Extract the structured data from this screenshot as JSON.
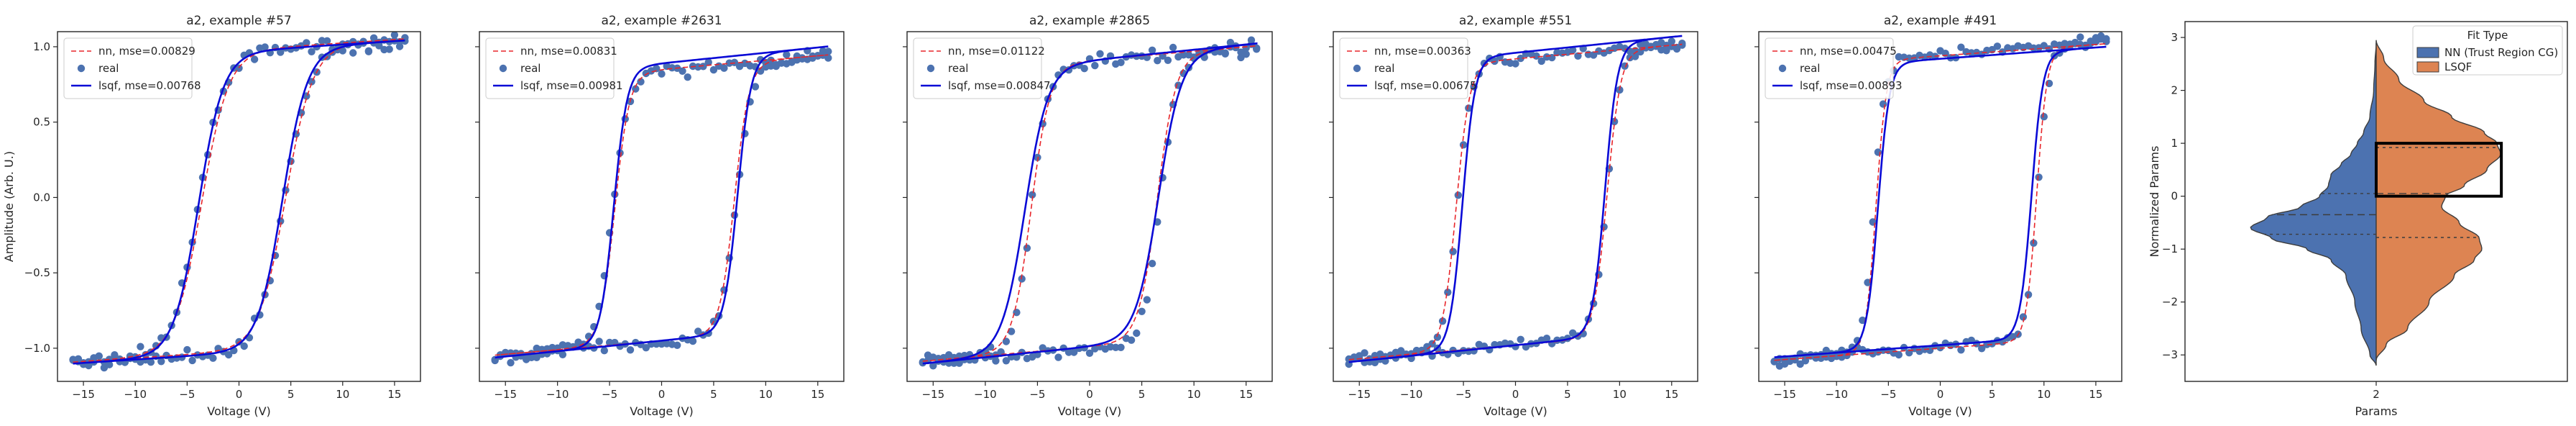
{
  "chart_data": [
    {
      "type": "scatter+line",
      "title": "a2, example #57",
      "xlabel": "Voltage (V)",
      "ylabel": "Amplitude (Arb. U.)",
      "xlim": [
        -17.5,
        17.5
      ],
      "ylim": [
        -1.22,
        1.1
      ],
      "xticks": [
        -15,
        -10,
        -5,
        0,
        5,
        10,
        15
      ],
      "yticks": [
        -1.0,
        -0.5,
        0.0,
        0.5,
        1.0
      ],
      "ytick_labels_visible": true,
      "legend": {
        "location": "upper-left",
        "entries": [
          "nn, mse=0.00829",
          "real",
          "lsqf, mse=0.00768"
        ]
      },
      "series": [
        {
          "name": "nn, mse=0.00829",
          "style": "dashed",
          "color": "#e8262b",
          "v0_up": 4.5,
          "v0_down": -3.6,
          "width": 2.6,
          "amp": 1.0,
          "offset": -0.02,
          "tilt": 0.0045
        },
        {
          "name": "real",
          "style": "scatter",
          "color": "#4c72b0",
          "v0_up": 4.4,
          "v0_down": -3.9,
          "width": 2.5,
          "amp": 1.0,
          "offset": -0.03,
          "tilt": 0.004,
          "noise": 0.045,
          "n": 130
        },
        {
          "name": "lsqf, mse=0.00768",
          "style": "solid",
          "color": "#0a0ad6",
          "v0_up": 4.2,
          "v0_down": -3.9,
          "width": 2.4,
          "amp": 1.0,
          "offset": -0.03,
          "tilt": 0.0045
        }
      ]
    },
    {
      "type": "scatter+line",
      "title": "a2, example #2631",
      "xlabel": "Voltage (V)",
      "ylabel": "",
      "xlim": [
        -17.5,
        17.5
      ],
      "ylim": [
        -1.22,
        1.1
      ],
      "xticks": [
        -15,
        -10,
        -5,
        0,
        5,
        10,
        15
      ],
      "yticks": [
        -1.0,
        -0.5,
        0.0,
        0.5,
        1.0
      ],
      "ytick_labels_visible": false,
      "legend": {
        "location": "upper-left",
        "entries": [
          "nn, mse=0.00831",
          "real",
          "lsqf, mse=0.00981"
        ]
      },
      "series": [
        {
          "name": "nn, mse=0.00831",
          "style": "dashed",
          "color": "#e8262b",
          "v0_up": 7.0,
          "v0_down": -4.5,
          "width": 1.4,
          "amp": 0.9,
          "offset": -0.05,
          "tilt": 0.006
        },
        {
          "name": "real",
          "style": "scatter",
          "color": "#4c72b0",
          "v0_up": 7.2,
          "v0_down": -4.7,
          "width": 1.5,
          "amp": 0.9,
          "offset": -0.06,
          "tilt": 0.006,
          "noise": 0.04,
          "n": 130
        },
        {
          "name": "lsqf, mse=0.00981",
          "style": "solid",
          "color": "#0a0ad6",
          "v0_up": 7.3,
          "v0_down": -4.6,
          "width": 1.3,
          "amp": 0.92,
          "offset": -0.03,
          "tilt": 0.007
        }
      ]
    },
    {
      "type": "scatter+line",
      "title": "a2, example #2865",
      "xlabel": "Voltage (V)",
      "ylabel": "",
      "xlim": [
        -17.5,
        17.5
      ],
      "ylim": [
        -1.22,
        1.1
      ],
      "xticks": [
        -15,
        -10,
        -5,
        0,
        5,
        10,
        15
      ],
      "yticks": [
        -1.0,
        -0.5,
        0.0,
        0.5,
        1.0
      ],
      "ytick_labels_visible": false,
      "legend": {
        "location": "upper-left",
        "entries": [
          "nn, mse=0.01122",
          "real",
          "lsqf, mse=0.00847"
        ]
      },
      "series": [
        {
          "name": "nn, mse=0.01122",
          "style": "dashed",
          "color": "#e8262b",
          "v0_up": 6.5,
          "v0_down": -5.6,
          "width": 1.8,
          "amp": 0.95,
          "offset": -0.04,
          "tilt": 0.006
        },
        {
          "name": "real",
          "style": "scatter",
          "color": "#4c72b0",
          "v0_up": 6.8,
          "v0_down": -5.6,
          "width": 1.6,
          "amp": 0.95,
          "offset": -0.05,
          "tilt": 0.006,
          "noise": 0.04,
          "n": 130
        },
        {
          "name": "lsqf, mse=0.00847",
          "style": "solid",
          "color": "#0a0ad6",
          "v0_up": 6.6,
          "v0_down": -6.2,
          "width": 2.2,
          "amp": 0.95,
          "offset": -0.04,
          "tilt": 0.007
        }
      ]
    },
    {
      "type": "scatter+line",
      "title": "a2, example #551",
      "xlabel": "Voltage (V)",
      "ylabel": "",
      "xlim": [
        -17.5,
        17.5
      ],
      "ylim": [
        -1.22,
        1.1
      ],
      "xticks": [
        -15,
        -10,
        -5,
        0,
        5,
        10,
        15
      ],
      "yticks": [
        -1.0,
        -0.5,
        0.0,
        0.5,
        1.0
      ],
      "ytick_labels_visible": false,
      "legend": {
        "location": "upper-left",
        "entries": [
          "nn, mse=0.00363",
          "real",
          "lsqf, mse=0.00675"
        ]
      },
      "series": [
        {
          "name": "nn, mse=0.00363",
          "style": "dashed",
          "color": "#e8262b",
          "v0_up": 8.8,
          "v0_down": -5.7,
          "width": 1.3,
          "amp": 0.95,
          "offset": -0.03,
          "tilt": 0.006
        },
        {
          "name": "real",
          "style": "scatter",
          "color": "#4c72b0",
          "v0_up": 8.8,
          "v0_down": -5.6,
          "width": 1.3,
          "amp": 0.95,
          "offset": -0.03,
          "tilt": 0.006,
          "noise": 0.035,
          "n": 130
        },
        {
          "name": "lsqf, mse=0.00675",
          "style": "solid",
          "color": "#0a0ad6",
          "v0_up": 8.6,
          "v0_down": -5.1,
          "width": 1.2,
          "amp": 0.97,
          "offset": -0.01,
          "tilt": 0.007
        }
      ]
    },
    {
      "type": "scatter+line",
      "title": "a2, example #491",
      "xlabel": "Voltage (V)",
      "ylabel": "",
      "xlim": [
        -17.5,
        17.5
      ],
      "ylim": [
        -1.22,
        1.1
      ],
      "xticks": [
        -15,
        -10,
        -5,
        0,
        5,
        10,
        15
      ],
      "yticks": [
        -1.0,
        -0.5,
        0.0,
        0.5,
        1.0
      ],
      "ytick_labels_visible": false,
      "legend": {
        "location": "upper-left",
        "entries": [
          "nn, mse=0.00475",
          "real",
          "lsqf, mse=0.00893"
        ]
      },
      "series": [
        {
          "name": "nn, mse=0.00475",
          "style": "dashed",
          "color": "#e8262b",
          "v0_up": 9.3,
          "v0_down": -6.2,
          "width": 1.0,
          "amp": 0.97,
          "offset": -0.03,
          "tilt": 0.005
        },
        {
          "name": "real",
          "style": "scatter",
          "color": "#4c72b0",
          "v0_up": 9.4,
          "v0_down": -6.4,
          "width": 1.1,
          "amp": 0.97,
          "offset": -0.02,
          "tilt": 0.006,
          "noise": 0.035,
          "n": 130
        },
        {
          "name": "lsqf, mse=0.00893",
          "style": "solid",
          "color": "#0a0ad6",
          "v0_up": 8.8,
          "v0_down": -6.0,
          "width": 1.1,
          "amp": 0.95,
          "offset": -0.03,
          "tilt": 0.005
        }
      ]
    },
    {
      "type": "violin",
      "title": "",
      "xlabel": "Params",
      "ylabel": "Normalized Params",
      "categories": [
        "2"
      ],
      "ylim": [
        -3.5,
        3.3
      ],
      "yticks": [
        -3,
        -2,
        -1,
        0,
        1,
        2,
        3
      ],
      "legend": {
        "title": "Fit Type",
        "location": "upper-right",
        "entries": [
          "NN (Trust Region CG)",
          "LSQF"
        ]
      },
      "series": [
        {
          "name": "NN (Trust Region CG)",
          "side": "left",
          "color": "#4c72b0",
          "density_y": [
            -3.2,
            -3.0,
            -2.5,
            -2.0,
            -1.5,
            -1.2,
            -1.0,
            -0.8,
            -0.6,
            -0.4,
            -0.2,
            0.0,
            0.2,
            0.4,
            0.6,
            0.8,
            1.0,
            1.2,
            1.5,
            2.0,
            2.5,
            2.9
          ],
          "density_w": [
            0.0,
            0.05,
            0.12,
            0.17,
            0.24,
            0.36,
            0.55,
            0.83,
            1.0,
            0.87,
            0.6,
            0.45,
            0.38,
            0.36,
            0.28,
            0.2,
            0.15,
            0.1,
            0.05,
            0.02,
            0.01,
            0.0
          ],
          "quartiles": [
            -0.72,
            -0.35,
            0.05
          ]
        },
        {
          "name": "LSQF",
          "side": "right",
          "color": "#dd8452",
          "density_y": [
            -3.1,
            -2.8,
            -2.5,
            -2.0,
            -1.5,
            -1.2,
            -1.0,
            -0.8,
            -0.5,
            -0.2,
            0.0,
            0.2,
            0.5,
            0.8,
            1.0,
            1.2,
            1.5,
            1.8,
            2.2,
            2.6,
            2.95
          ],
          "density_w": [
            0.0,
            0.08,
            0.25,
            0.42,
            0.62,
            0.78,
            0.84,
            0.82,
            0.66,
            0.52,
            0.55,
            0.7,
            0.88,
            0.99,
            0.96,
            0.86,
            0.6,
            0.38,
            0.18,
            0.06,
            0.0
          ],
          "quartiles": [
            -0.78,
            0.05,
            0.92
          ]
        }
      ],
      "highlight_box": {
        "y_range": [
          0.0,
          1.0
        ],
        "x_side": "right",
        "color": "#000000"
      }
    }
  ]
}
